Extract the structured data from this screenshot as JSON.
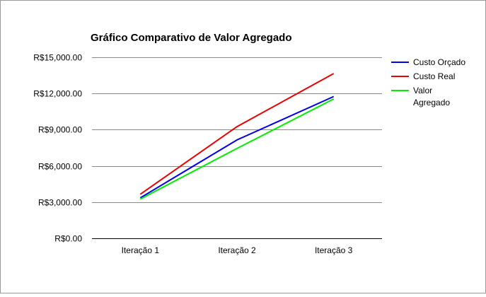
{
  "chart_data": {
    "type": "line",
    "title": "Gráfico Comparativo de Valor Agregado",
    "xlabel": "",
    "ylabel": "",
    "categories": [
      "Iteração 1",
      "Iteração 2",
      "Iteração 3"
    ],
    "ylim": [
      0,
      15000
    ],
    "yticks": [
      0,
      3000,
      6000,
      9000,
      12000,
      15000
    ],
    "ytick_labels": [
      "R$0.00",
      "R$3,000.00",
      "R$6,000.00",
      "R$9,000.00",
      "R$12,000.00",
      "R$15,000.00"
    ],
    "grid": true,
    "legend_position": "right",
    "series": [
      {
        "name": "Custo Orçado",
        "legend_lines": [
          "Custo Orçado"
        ],
        "color": "#0000ee",
        "values": [
          3350,
          8150,
          11750
        ]
      },
      {
        "name": "Custo Real",
        "legend_lines": [
          "Custo Real"
        ],
        "color": "#ee0000",
        "values": [
          3650,
          9250,
          13650
        ]
      },
      {
        "name": "Valor Agregado",
        "legend_lines": [
          "Valor",
          "Agregado"
        ],
        "color": "#00ee00",
        "values": [
          3250,
          7450,
          11550
        ]
      }
    ]
  }
}
